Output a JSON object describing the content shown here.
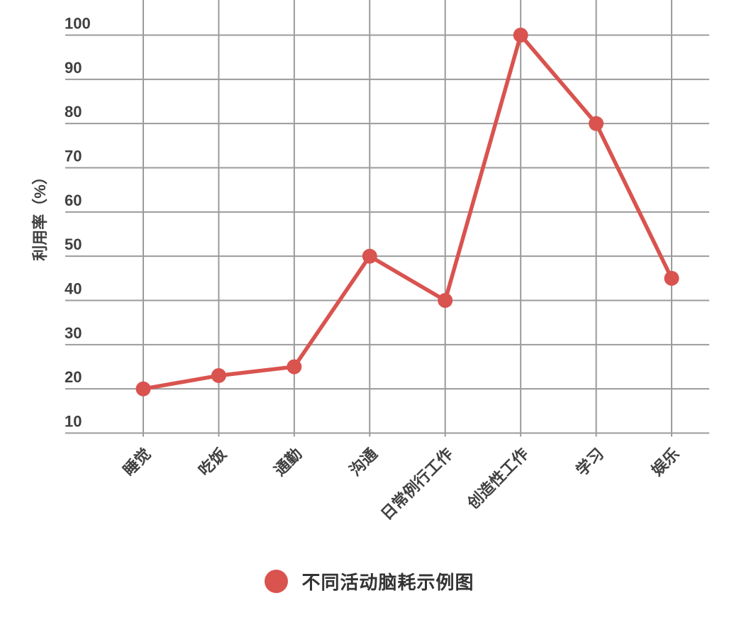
{
  "chart_data": {
    "type": "line",
    "categories": [
      "睡觉",
      "吃饭",
      "通勤",
      "沟通",
      "日常例行工作",
      "创造性工作",
      "学习",
      "娱乐"
    ],
    "values": [
      20,
      23,
      25,
      50,
      40,
      100,
      80,
      45
    ],
    "series_name": "不同活动脑耗示例图",
    "title": "",
    "xlabel": "",
    "ylabel": "利用率（%）",
    "yticks": [
      10,
      20,
      30,
      40,
      50,
      60,
      70,
      80,
      90,
      100
    ],
    "ylim": [
      10,
      100
    ],
    "grid": true,
    "legend_position": "bottom",
    "x_label_rotation_deg": 45,
    "line_color": "#d9534f",
    "marker_color": "#d9534f",
    "grid_color": "#9b9b9b",
    "text_color": "#404040",
    "legend_text_color": "#333333",
    "background": "#ffffff"
  }
}
